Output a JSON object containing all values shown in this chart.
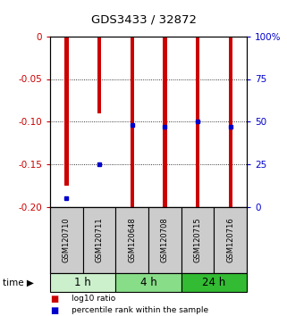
{
  "title": "GDS3433 / 32872",
  "samples": [
    "GSM120710",
    "GSM120711",
    "GSM120648",
    "GSM120708",
    "GSM120715",
    "GSM120716"
  ],
  "log10_ratio": [
    -0.175,
    -0.09,
    -0.2,
    -0.2,
    -0.2,
    -0.2
  ],
  "percentile_rank": [
    5,
    25,
    48,
    47,
    50,
    47
  ],
  "bar_color": "#cc0000",
  "dot_color": "#0000cc",
  "ylim_left": [
    -0.2,
    0.0
  ],
  "ylim_right": [
    0,
    100
  ],
  "yticks_left": [
    0,
    -0.05,
    -0.1,
    -0.15,
    -0.2
  ],
  "ytick_labels_left": [
    "0",
    "-0.05",
    "-0.10",
    "-0.15",
    "-0.20"
  ],
  "yticks_right": [
    0,
    25,
    50,
    75,
    100
  ],
  "ytick_labels_right": [
    "0",
    "25",
    "50",
    "75",
    "100%"
  ],
  "time_groups": [
    {
      "label": "1 h",
      "cols": [
        0,
        1
      ],
      "color": "#ccf0cc"
    },
    {
      "label": "4 h",
      "cols": [
        2,
        3
      ],
      "color": "#88dd88"
    },
    {
      "label": "24 h",
      "cols": [
        4,
        5
      ],
      "color": "#33bb33"
    }
  ],
  "bar_width": 0.12,
  "background_color": "#ffffff",
  "plot_bg": "#ffffff",
  "label_bg": "#cccccc",
  "time_label": "time"
}
